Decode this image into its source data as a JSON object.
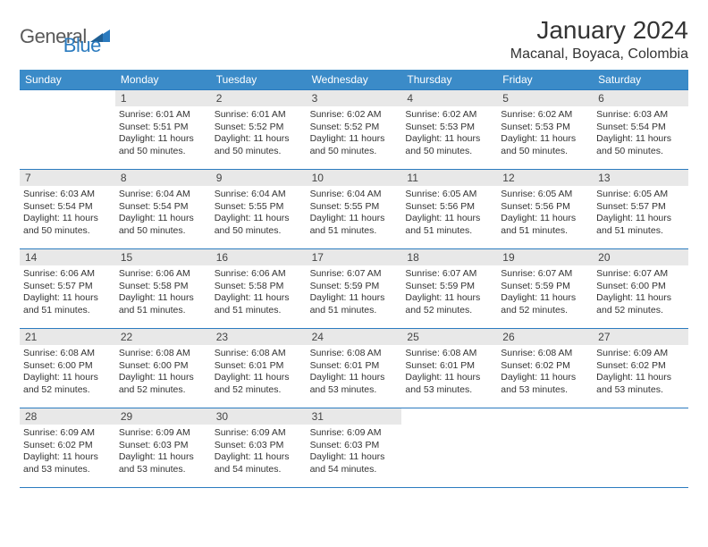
{
  "logo": {
    "word1": "General",
    "word2": "Blue"
  },
  "header": {
    "month_title": "January 2024",
    "location": "Macanal, Boyaca, Colombia"
  },
  "weekdays": [
    "Sunday",
    "Monday",
    "Tuesday",
    "Wednesday",
    "Thursday",
    "Friday",
    "Saturday"
  ],
  "colors": {
    "header_bar": "#3b8bc8",
    "rule": "#2b7bbf",
    "day_band": "#e8e8e8",
    "text": "#333333",
    "logo_gray": "#5a5a5a",
    "logo_blue": "#2b7bbf",
    "background": "#ffffff"
  },
  "weeks": [
    [
      {
        "n": "",
        "sr": "",
        "ss": "",
        "dl": ""
      },
      {
        "n": "1",
        "sr": "Sunrise: 6:01 AM",
        "ss": "Sunset: 5:51 PM",
        "dl": "Daylight: 11 hours and 50 minutes."
      },
      {
        "n": "2",
        "sr": "Sunrise: 6:01 AM",
        "ss": "Sunset: 5:52 PM",
        "dl": "Daylight: 11 hours and 50 minutes."
      },
      {
        "n": "3",
        "sr": "Sunrise: 6:02 AM",
        "ss": "Sunset: 5:52 PM",
        "dl": "Daylight: 11 hours and 50 minutes."
      },
      {
        "n": "4",
        "sr": "Sunrise: 6:02 AM",
        "ss": "Sunset: 5:53 PM",
        "dl": "Daylight: 11 hours and 50 minutes."
      },
      {
        "n": "5",
        "sr": "Sunrise: 6:02 AM",
        "ss": "Sunset: 5:53 PM",
        "dl": "Daylight: 11 hours and 50 minutes."
      },
      {
        "n": "6",
        "sr": "Sunrise: 6:03 AM",
        "ss": "Sunset: 5:54 PM",
        "dl": "Daylight: 11 hours and 50 minutes."
      }
    ],
    [
      {
        "n": "7",
        "sr": "Sunrise: 6:03 AM",
        "ss": "Sunset: 5:54 PM",
        "dl": "Daylight: 11 hours and 50 minutes."
      },
      {
        "n": "8",
        "sr": "Sunrise: 6:04 AM",
        "ss": "Sunset: 5:54 PM",
        "dl": "Daylight: 11 hours and 50 minutes."
      },
      {
        "n": "9",
        "sr": "Sunrise: 6:04 AM",
        "ss": "Sunset: 5:55 PM",
        "dl": "Daylight: 11 hours and 50 minutes."
      },
      {
        "n": "10",
        "sr": "Sunrise: 6:04 AM",
        "ss": "Sunset: 5:55 PM",
        "dl": "Daylight: 11 hours and 51 minutes."
      },
      {
        "n": "11",
        "sr": "Sunrise: 6:05 AM",
        "ss": "Sunset: 5:56 PM",
        "dl": "Daylight: 11 hours and 51 minutes."
      },
      {
        "n": "12",
        "sr": "Sunrise: 6:05 AM",
        "ss": "Sunset: 5:56 PM",
        "dl": "Daylight: 11 hours and 51 minutes."
      },
      {
        "n": "13",
        "sr": "Sunrise: 6:05 AM",
        "ss": "Sunset: 5:57 PM",
        "dl": "Daylight: 11 hours and 51 minutes."
      }
    ],
    [
      {
        "n": "14",
        "sr": "Sunrise: 6:06 AM",
        "ss": "Sunset: 5:57 PM",
        "dl": "Daylight: 11 hours and 51 minutes."
      },
      {
        "n": "15",
        "sr": "Sunrise: 6:06 AM",
        "ss": "Sunset: 5:58 PM",
        "dl": "Daylight: 11 hours and 51 minutes."
      },
      {
        "n": "16",
        "sr": "Sunrise: 6:06 AM",
        "ss": "Sunset: 5:58 PM",
        "dl": "Daylight: 11 hours and 51 minutes."
      },
      {
        "n": "17",
        "sr": "Sunrise: 6:07 AM",
        "ss": "Sunset: 5:59 PM",
        "dl": "Daylight: 11 hours and 51 minutes."
      },
      {
        "n": "18",
        "sr": "Sunrise: 6:07 AM",
        "ss": "Sunset: 5:59 PM",
        "dl": "Daylight: 11 hours and 52 minutes."
      },
      {
        "n": "19",
        "sr": "Sunrise: 6:07 AM",
        "ss": "Sunset: 5:59 PM",
        "dl": "Daylight: 11 hours and 52 minutes."
      },
      {
        "n": "20",
        "sr": "Sunrise: 6:07 AM",
        "ss": "Sunset: 6:00 PM",
        "dl": "Daylight: 11 hours and 52 minutes."
      }
    ],
    [
      {
        "n": "21",
        "sr": "Sunrise: 6:08 AM",
        "ss": "Sunset: 6:00 PM",
        "dl": "Daylight: 11 hours and 52 minutes."
      },
      {
        "n": "22",
        "sr": "Sunrise: 6:08 AM",
        "ss": "Sunset: 6:00 PM",
        "dl": "Daylight: 11 hours and 52 minutes."
      },
      {
        "n": "23",
        "sr": "Sunrise: 6:08 AM",
        "ss": "Sunset: 6:01 PM",
        "dl": "Daylight: 11 hours and 52 minutes."
      },
      {
        "n": "24",
        "sr": "Sunrise: 6:08 AM",
        "ss": "Sunset: 6:01 PM",
        "dl": "Daylight: 11 hours and 53 minutes."
      },
      {
        "n": "25",
        "sr": "Sunrise: 6:08 AM",
        "ss": "Sunset: 6:01 PM",
        "dl": "Daylight: 11 hours and 53 minutes."
      },
      {
        "n": "26",
        "sr": "Sunrise: 6:08 AM",
        "ss": "Sunset: 6:02 PM",
        "dl": "Daylight: 11 hours and 53 minutes."
      },
      {
        "n": "27",
        "sr": "Sunrise: 6:09 AM",
        "ss": "Sunset: 6:02 PM",
        "dl": "Daylight: 11 hours and 53 minutes."
      }
    ],
    [
      {
        "n": "28",
        "sr": "Sunrise: 6:09 AM",
        "ss": "Sunset: 6:02 PM",
        "dl": "Daylight: 11 hours and 53 minutes."
      },
      {
        "n": "29",
        "sr": "Sunrise: 6:09 AM",
        "ss": "Sunset: 6:03 PM",
        "dl": "Daylight: 11 hours and 53 minutes."
      },
      {
        "n": "30",
        "sr": "Sunrise: 6:09 AM",
        "ss": "Sunset: 6:03 PM",
        "dl": "Daylight: 11 hours and 54 minutes."
      },
      {
        "n": "31",
        "sr": "Sunrise: 6:09 AM",
        "ss": "Sunset: 6:03 PM",
        "dl": "Daylight: 11 hours and 54 minutes."
      },
      {
        "n": "",
        "sr": "",
        "ss": "",
        "dl": ""
      },
      {
        "n": "",
        "sr": "",
        "ss": "",
        "dl": ""
      },
      {
        "n": "",
        "sr": "",
        "ss": "",
        "dl": ""
      }
    ]
  ]
}
